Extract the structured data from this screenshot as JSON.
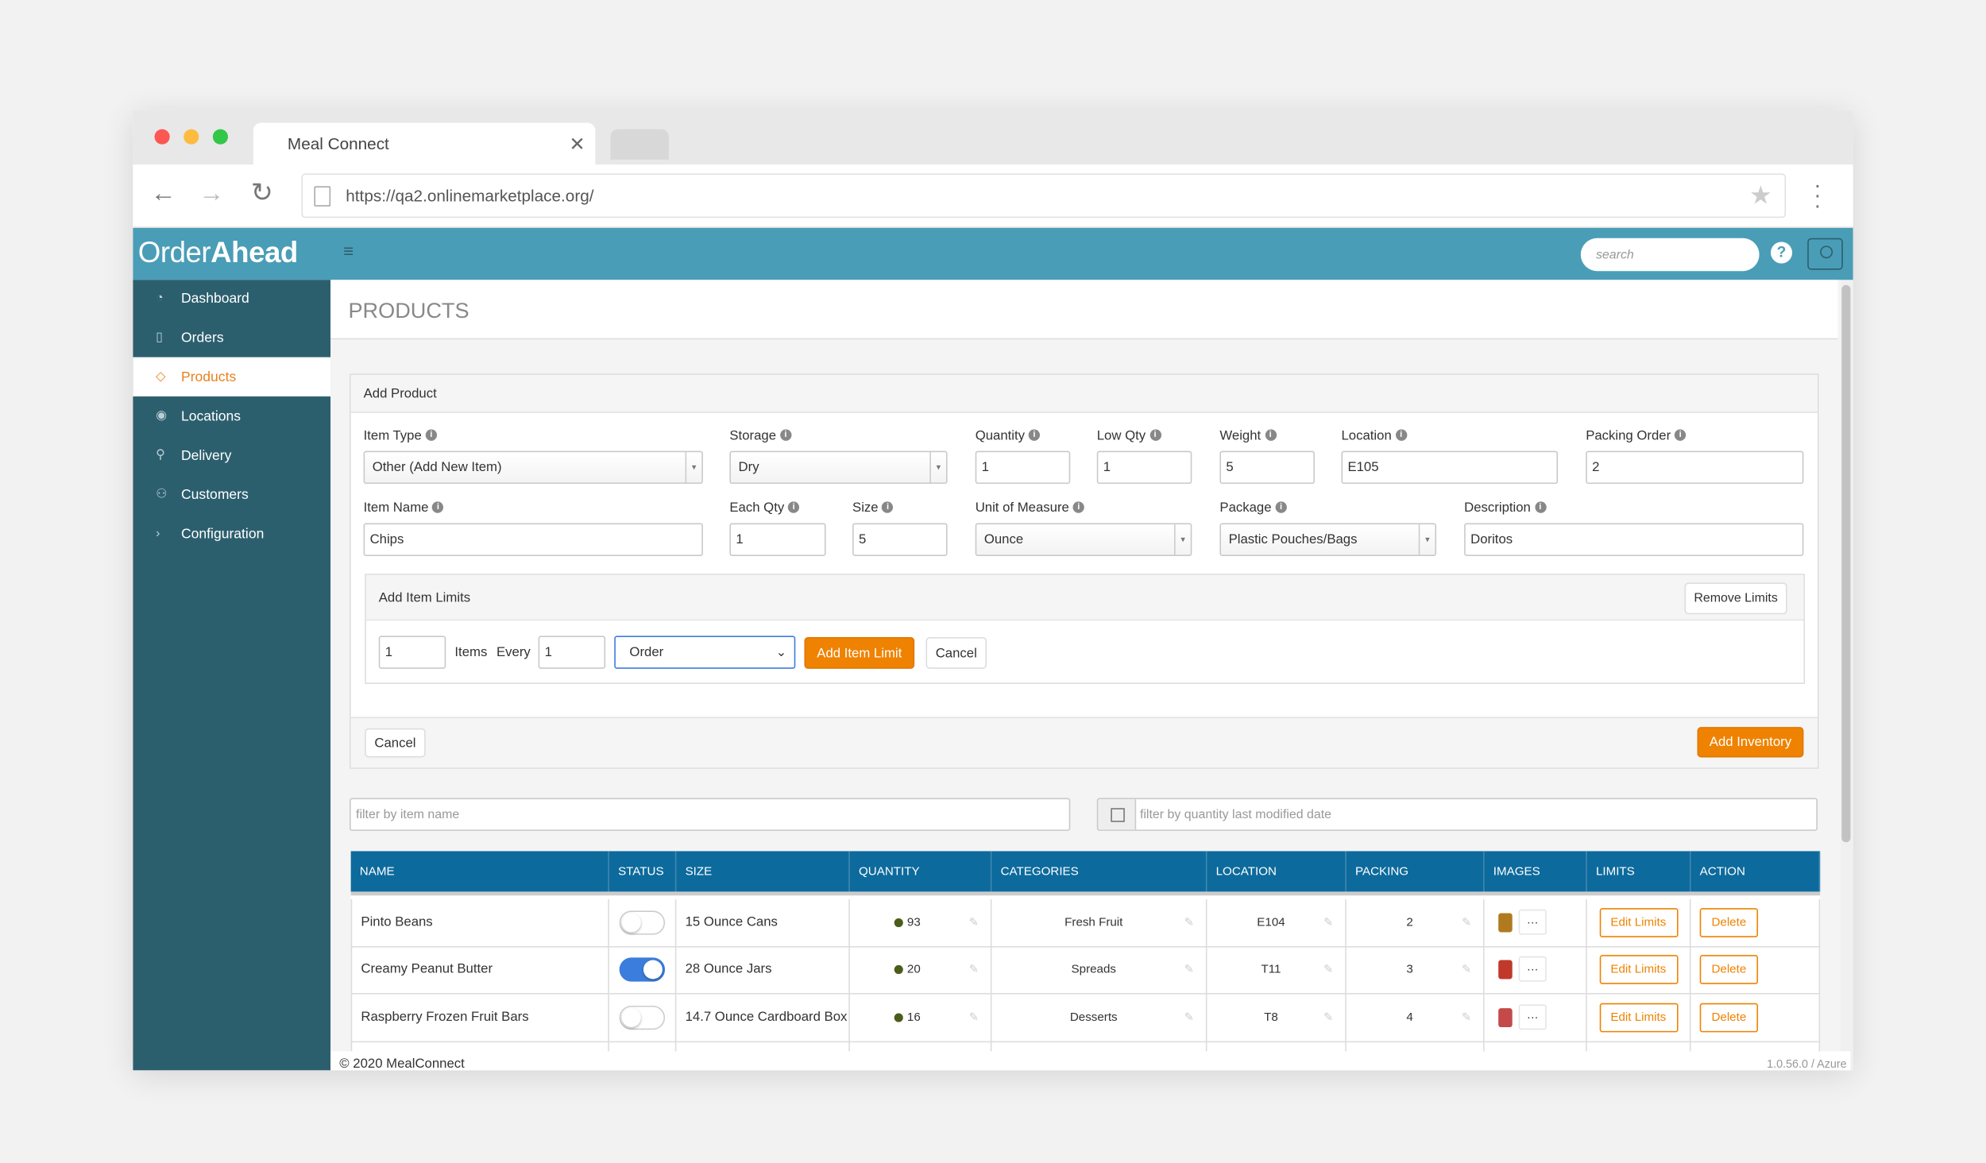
{
  "browser": {
    "tab_title": "Meal Connect",
    "url": "https://qa2.onlinemarketplace.org/"
  },
  "header": {
    "brand_light": "Order",
    "brand_bold": "Ahead",
    "search_placeholder": "search"
  },
  "sidebar": {
    "items": [
      "Dashboard",
      "Orders",
      "Products",
      "Locations",
      "Delivery",
      "Customers",
      "Configuration"
    ],
    "active": "Products"
  },
  "page": {
    "title": "PRODUCTS"
  },
  "form": {
    "title": "Add Product",
    "fields": [
      {
        "label": "Item Type",
        "value": "Other (Add New Item)"
      },
      {
        "label": "Storage",
        "value": "Dry"
      },
      {
        "label": "Quantity",
        "value": 1
      },
      {
        "label": "Low Qty",
        "value": 1
      },
      {
        "label": "Weight",
        "value": 5
      },
      {
        "label": "Location",
        "value": "E105"
      },
      {
        "label": "Packing Order",
        "value": 2
      },
      {
        "label": "Item Name",
        "value": "Chips"
      },
      {
        "label": "Each Qty",
        "value": 1
      },
      {
        "label": "Size",
        "value": 5
      },
      {
        "label": "Unit of Measure",
        "value": "Ounce"
      },
      {
        "label": "Package",
        "value": "Plastic Pouches/Bags"
      },
      {
        "label": "Description",
        "value": "Doritos"
      }
    ],
    "limits": {
      "title": "Add Item Limits",
      "remove": "Remove Limits",
      "count": 1,
      "items_text": "Items",
      "every_text": "Every",
      "every": 1,
      "period": "Order",
      "add": "Add Item Limit",
      "cancel": "Cancel"
    },
    "cancel": "Cancel",
    "submit": "Add Inventory"
  },
  "filters": {
    "name_placeholder": "filter by item name",
    "date_placeholder": "filter by quantity last modified date"
  },
  "table": {
    "columns": [
      "NAME",
      "STATUS",
      "SIZE",
      "QUANTITY",
      "CATEGORIES",
      "LOCATION",
      "PACKING",
      "IMAGES",
      "LIMITS",
      "ACTION"
    ],
    "rows": [
      {
        "name": "Pinto Beans",
        "status": false,
        "size": "15 Ounce Cans",
        "quantity": 93,
        "category": "Fresh Fruit",
        "location": "E104",
        "packing": 2
      },
      {
        "name": "Creamy Peanut Butter",
        "status": true,
        "size": "28 Ounce Jars",
        "quantity": 20,
        "category": "Spreads",
        "location": "T11",
        "packing": 3
      },
      {
        "name": "Raspberry Frozen Fruit Bars",
        "status": false,
        "size": "14.7 Ounce Cardboard Box",
        "quantity": 16,
        "category": "Desserts",
        "location": "T8",
        "packing": 4
      }
    ],
    "edit_label": "Edit Limits",
    "delete_label": "Delete"
  },
  "footer": {
    "copyright": "© 2020 MealConnect",
    "version": "1.0.56.0 / Azure"
  }
}
